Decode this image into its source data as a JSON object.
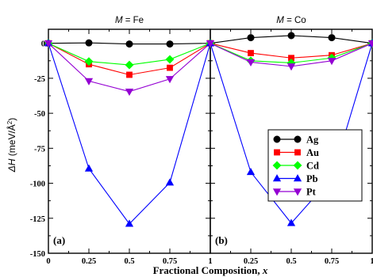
{
  "chart_data": [
    {
      "type": "line",
      "title_prefix": "M",
      "title_sep": " = ",
      "title_element": "Fe",
      "panel_tag": "(a)",
      "x": [
        0,
        0.25,
        0.5,
        0.75,
        1
      ],
      "xlim": [
        0,
        1
      ],
      "ylim": [
        -150,
        10
      ],
      "series": [
        {
          "name": "Ag",
          "color": "#000000",
          "marker": "circle",
          "values": [
            0,
            0.3,
            -0.5,
            -0.5,
            0
          ]
        },
        {
          "name": "Au",
          "color": "#ff0000",
          "marker": "square",
          "values": [
            0,
            -15,
            -22.5,
            -17.5,
            0
          ]
        },
        {
          "name": "Cd",
          "color": "#00ff00",
          "marker": "diamond",
          "values": [
            0,
            -13,
            -15.5,
            -11.5,
            0
          ]
        },
        {
          "name": "Pb",
          "color": "#0000ff",
          "marker": "triangle-up",
          "values": [
            0,
            -89.5,
            -129,
            -99.5,
            0
          ]
        },
        {
          "name": "Pt",
          "color": "#9400d3",
          "marker": "triangle-down",
          "values": [
            0,
            -27,
            -34.5,
            -25.5,
            0
          ]
        }
      ]
    },
    {
      "type": "line",
      "title_prefix": "M",
      "title_sep": " = ",
      "title_element": "Co",
      "panel_tag": "(b)",
      "x": [
        0,
        0.25,
        0.5,
        0.75,
        1
      ],
      "xlim": [
        0,
        1
      ],
      "ylim": [
        -150,
        10
      ],
      "series": [
        {
          "name": "Ag",
          "color": "#000000",
          "marker": "circle",
          "values": [
            0,
            4,
            5.5,
            4,
            0
          ]
        },
        {
          "name": "Au",
          "color": "#ff0000",
          "marker": "square",
          "values": [
            0,
            -7,
            -10.5,
            -8.5,
            0
          ]
        },
        {
          "name": "Cd",
          "color": "#00ff00",
          "marker": "diamond",
          "values": [
            0,
            -12.5,
            -14,
            -10.5,
            0
          ]
        },
        {
          "name": "Pb",
          "color": "#0000ff",
          "marker": "triangle-up",
          "values": [
            0,
            -92,
            -128.5,
            -96,
            0
          ]
        },
        {
          "name": "Pt",
          "color": "#9400d3",
          "marker": "triangle-down",
          "values": [
            0,
            -13.5,
            -16.5,
            -12.5,
            0
          ]
        }
      ]
    }
  ],
  "axes": {
    "xlabel_main": "Fractional Composition, ",
    "xlabel_var": "x",
    "ylabel_main": "ΔH",
    "ylabel_unit": " (meV/Å",
    "ylabel_sup": "2",
    "ylabel_close": ")",
    "yticks": [
      0,
      -25,
      -50,
      -75,
      -100,
      -125,
      -150
    ],
    "ytick_labels": [
      "0",
      "-25",
      "-50",
      "-75",
      "-100",
      "-125",
      "-150"
    ],
    "xticks": [
      0,
      0.25,
      0.5,
      0.75,
      1
    ],
    "xtick_labels": [
      "0",
      "0.25",
      "0.5",
      "0.75",
      "1"
    ]
  },
  "legend": {
    "placement": "inside panel (b), right-center",
    "entries": [
      "Ag",
      "Au",
      "Cd",
      "Pb",
      "Pt"
    ]
  }
}
